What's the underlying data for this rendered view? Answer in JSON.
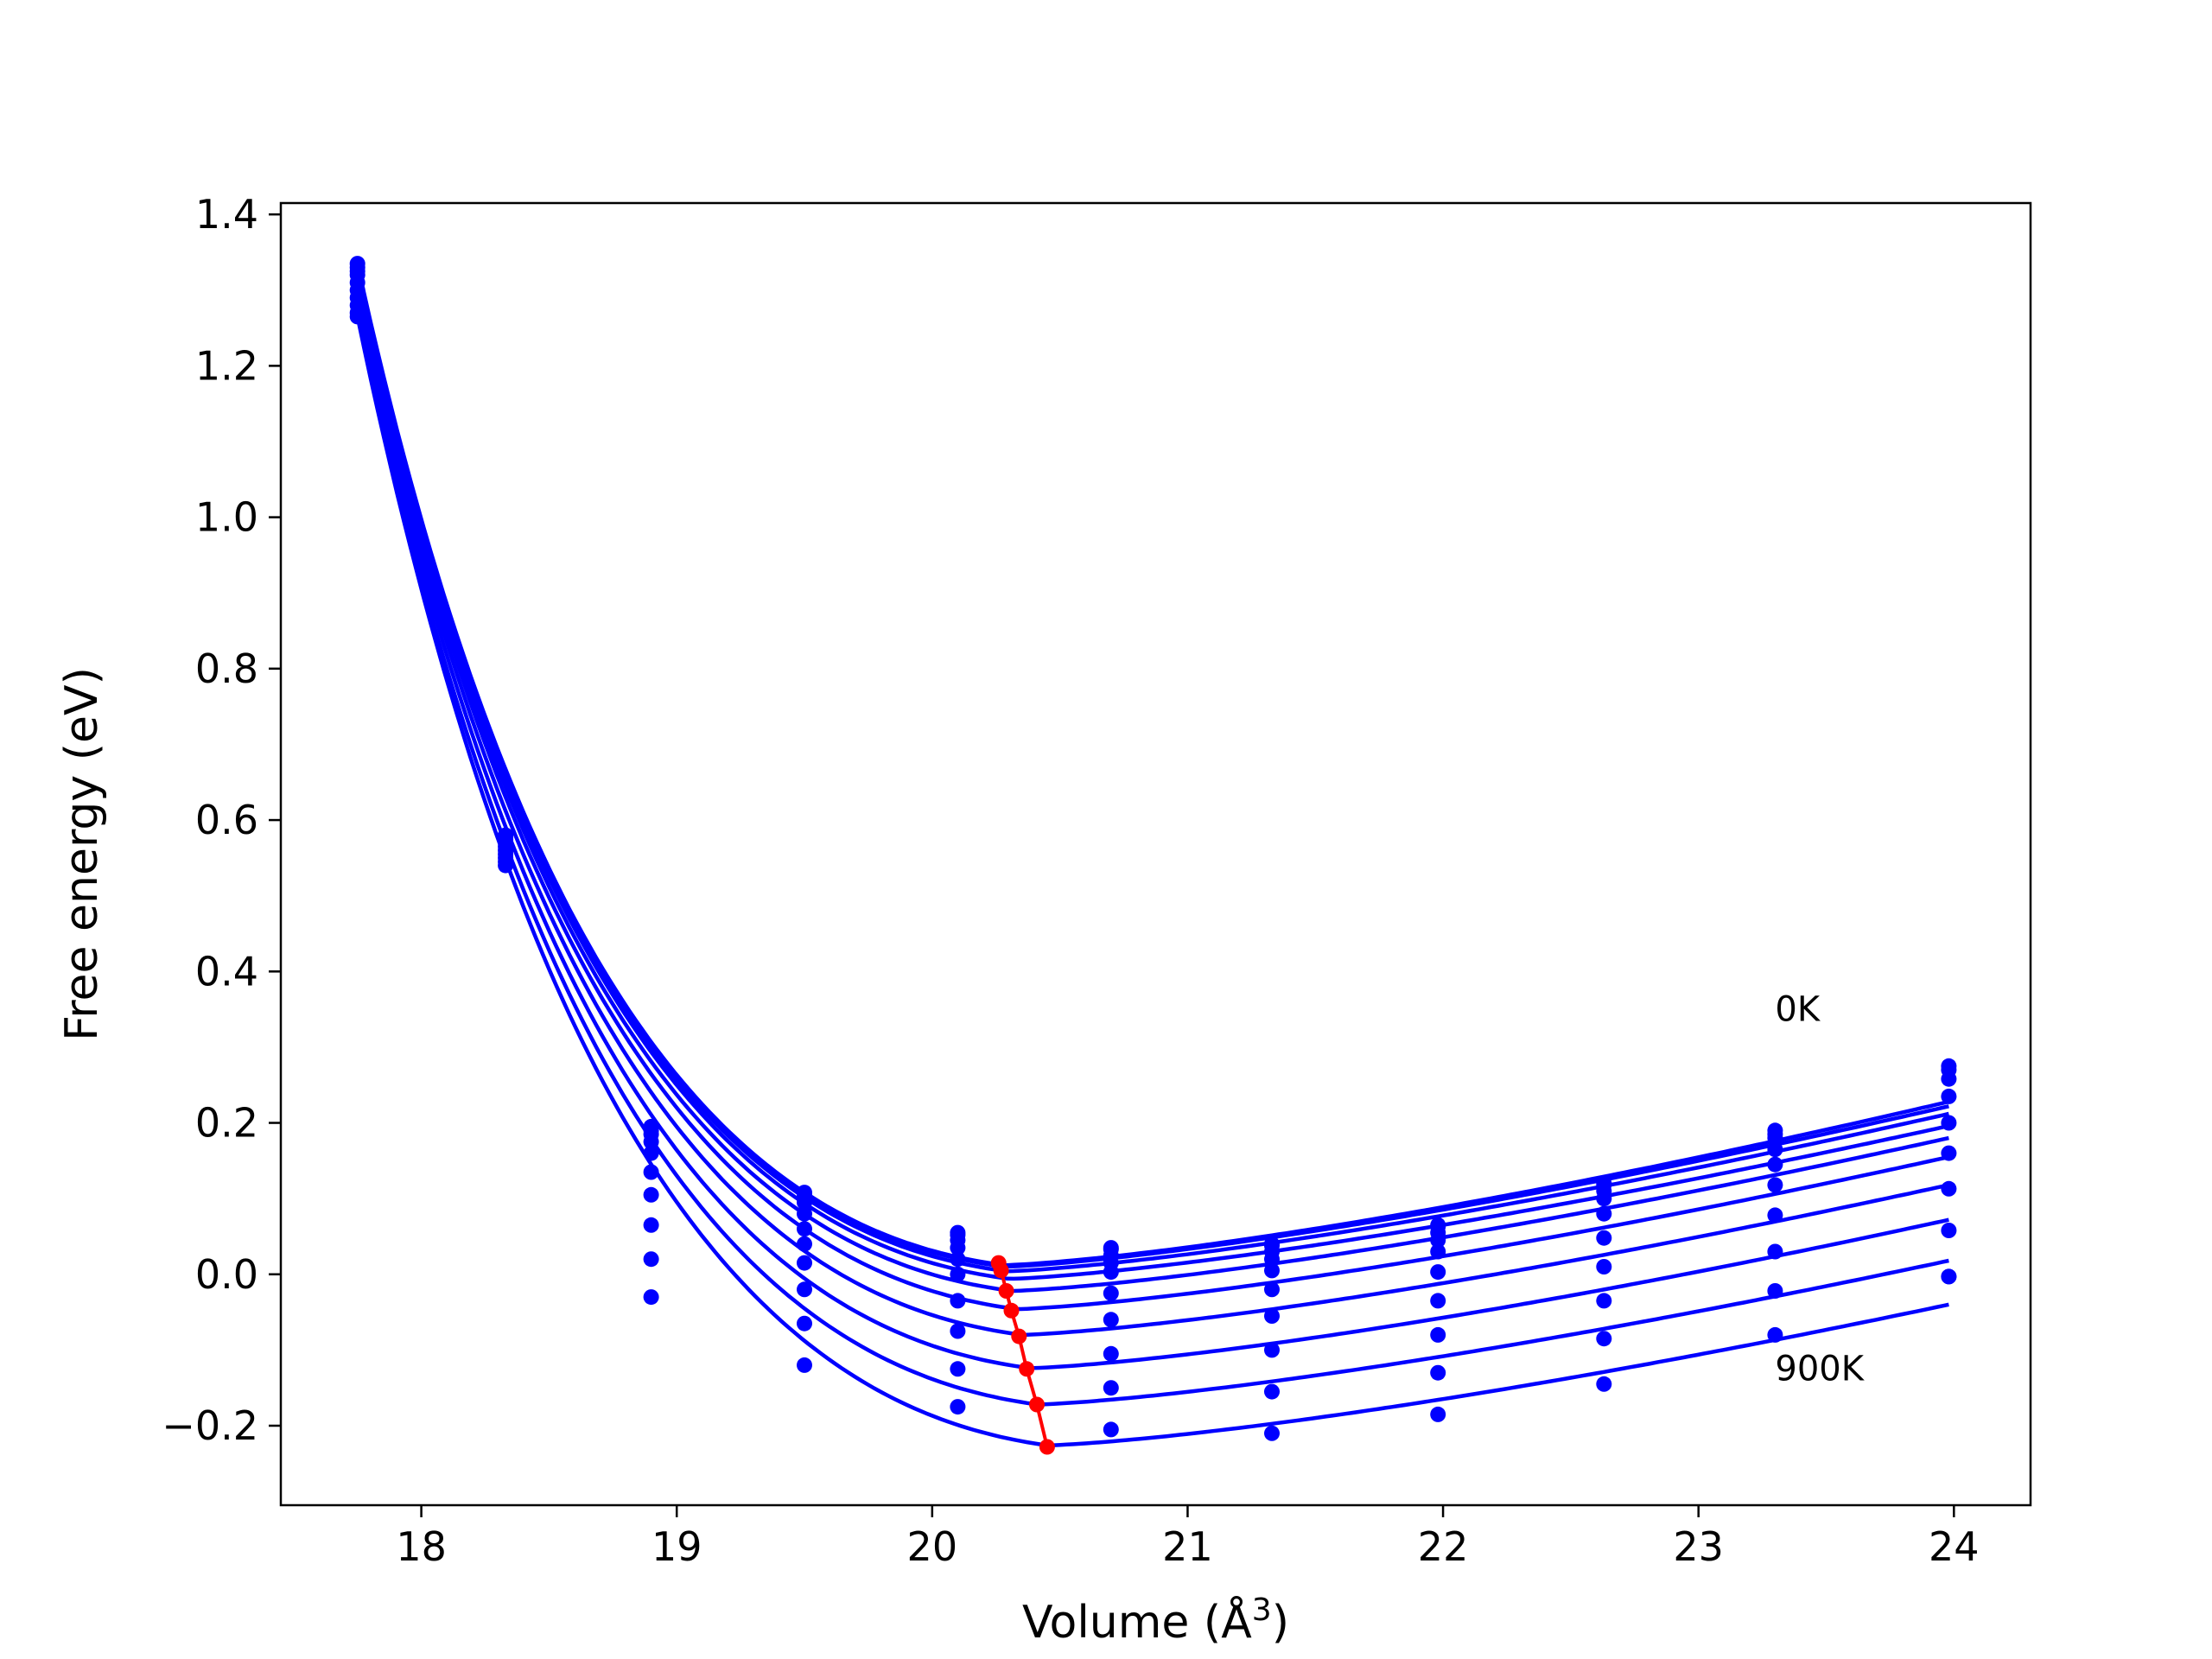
{
  "chart_data": {
    "type": "line",
    "title": "",
    "xlabel": "Volume (Å",
    "xlabel_sup": "3",
    "xlabel_close": ")",
    "ylabel": "Free energy (eV)",
    "xlim": [
      17.45,
      24.3
    ],
    "ylim": [
      -0.305,
      1.415
    ],
    "xticks": [
      18,
      19,
      20,
      21,
      22,
      23,
      24
    ],
    "yticks": [
      -0.2,
      0.0,
      0.2,
      0.4,
      0.6,
      0.8,
      1.0,
      1.2,
      1.4
    ],
    "xtick_labels": [
      "18",
      "19",
      "20",
      "21",
      "22",
      "23",
      "24"
    ],
    "ytick_labels": [
      "−0.2",
      "0.0",
      "0.2",
      "0.4",
      "0.6",
      "0.8",
      "1.0",
      "1.2",
      "1.4"
    ],
    "grid": false,
    "legend": "none",
    "colors": {
      "curves": "#0000ff",
      "minimum_path": "#ff0000",
      "axes": "#000000"
    },
    "annotations": [
      {
        "text": "0K",
        "x": 23.3,
        "y": 0.335
      },
      {
        "text": "900K",
        "x": 23.3,
        "y": -0.14
      }
    ],
    "volumes": [
      17.75,
      18.33,
      18.9,
      19.5,
      20.1,
      20.7,
      21.33,
      21.98,
      22.63,
      23.3,
      23.98
    ],
    "series": [
      {
        "values": [
          1.335,
          0.58,
          0.195,
          0.108,
          0.055,
          0.035,
          0.04,
          0.065,
          0.12,
          0.19,
          0.275
        ]
      },
      {
        "values": [
          1.33,
          0.577,
          0.19,
          0.105,
          0.052,
          0.033,
          0.038,
          0.063,
          0.118,
          0.185,
          0.27
        ]
      },
      {
        "values": [
          1.325,
          0.574,
          0.185,
          0.095,
          0.045,
          0.025,
          0.03,
          0.055,
          0.11,
          0.18,
          0.258
        ]
      },
      {
        "values": [
          1.32,
          0.57,
          0.175,
          0.08,
          0.035,
          0.015,
          0.02,
          0.045,
          0.1,
          0.165,
          0.235
        ]
      },
      {
        "values": [
          1.31,
          0.565,
          0.16,
          0.06,
          0.02,
          0.003,
          0.005,
          0.03,
          0.08,
          0.145,
          0.2
        ]
      },
      {
        "values": [
          1.3,
          0.56,
          0.135,
          0.04,
          0.0,
          -0.025,
          -0.02,
          0.003,
          0.048,
          0.118,
          0.16
        ]
      },
      {
        "values": [
          1.29,
          0.555,
          0.105,
          0.015,
          -0.035,
          -0.06,
          -0.055,
          -0.035,
          0.01,
          0.078,
          0.113
        ]
      },
      {
        "values": [
          1.28,
          0.55,
          0.065,
          -0.02,
          -0.075,
          -0.105,
          -0.1,
          -0.08,
          -0.035,
          0.03,
          0.058
        ]
      },
      {
        "values": [
          1.27,
          0.545,
          0.02,
          -0.065,
          -0.125,
          -0.15,
          -0.155,
          -0.13,
          -0.085,
          -0.022,
          -0.003
        ]
      },
      {
        "values": [
          1.265,
          0.54,
          -0.03,
          -0.12,
          -0.175,
          -0.205,
          -0.21,
          -0.185,
          -0.145,
          -0.08,
          -0.003
        ]
      }
    ],
    "fitted_curves": [
      {
        "v0": 20.28,
        "e0": 0.012,
        "end": 0.228
      },
      {
        "v0": 20.28,
        "e0": 0.01,
        "end": 0.222
      },
      {
        "v0": 20.29,
        "e0": 0.004,
        "end": 0.212
      },
      {
        "v0": 20.3,
        "e0": -0.006,
        "end": 0.196
      },
      {
        "v0": 20.31,
        "e0": -0.022,
        "end": 0.18
      },
      {
        "v0": 20.33,
        "e0": -0.046,
        "end": 0.155
      },
      {
        "v0": 20.35,
        "e0": -0.08,
        "end": 0.118
      },
      {
        "v0": 20.38,
        "e0": -0.124,
        "end": 0.072
      },
      {
        "v0": 20.41,
        "e0": -0.172,
        "end": 0.018
      },
      {
        "v0": 20.45,
        "e0": -0.226,
        "end": -0.04
      }
    ],
    "minimum_path": {
      "x": [
        20.26,
        20.27,
        20.29,
        20.31,
        20.34,
        20.37,
        20.41,
        20.45
      ],
      "y": [
        0.015,
        0.005,
        -0.022,
        -0.048,
        -0.082,
        -0.125,
        -0.172,
        -0.228
      ]
    }
  }
}
